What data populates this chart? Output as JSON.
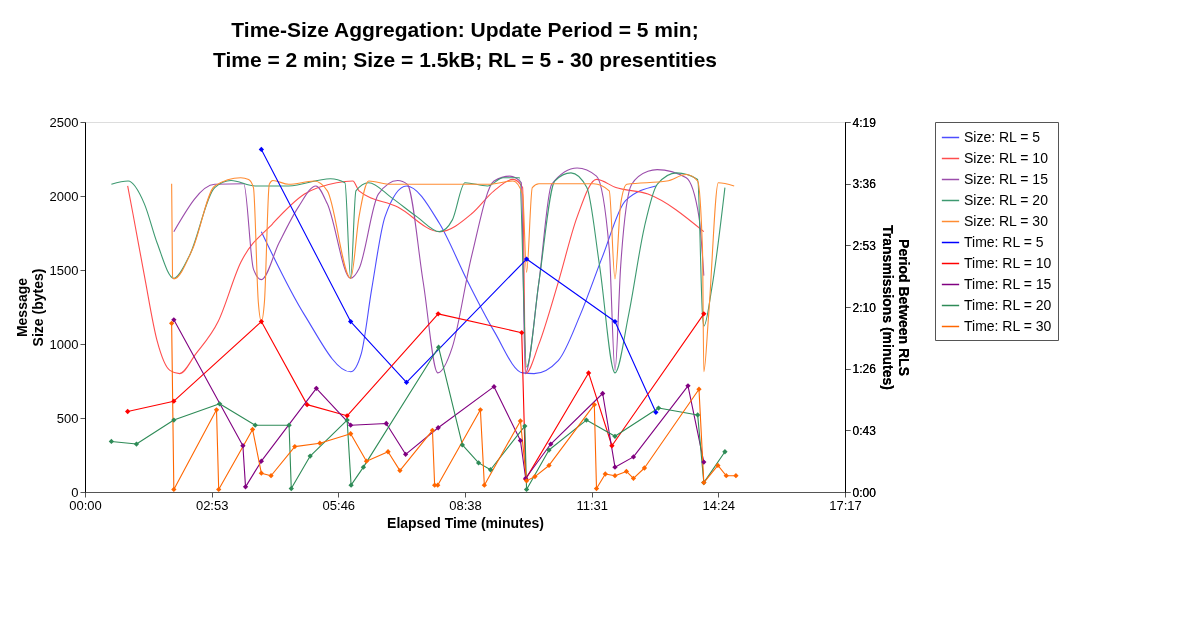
{
  "chart_data": {
    "type": "line",
    "title": [
      "Time-Size Aggregation: Update Period = 5 min;",
      "Time = 2 min; Size = 1.5kB;  RL = 5 - 30 presentities"
    ],
    "xlabel": "Elapsed Time (minutes)",
    "ylabel": "Message Size (bytes)",
    "y2label": "Period Between RLS Transmissions (minutes)",
    "xlim": [
      0,
      17.28
    ],
    "xticks": [
      {
        "value": 0,
        "label": "00:00"
      },
      {
        "value": 2.88,
        "label": "02:53"
      },
      {
        "value": 5.76,
        "label": "05:46"
      },
      {
        "value": 8.64,
        "label": "08:38"
      },
      {
        "value": 11.52,
        "label": "11:31"
      },
      {
        "value": 14.4,
        "label": "14:24"
      },
      {
        "value": 17.28,
        "label": "17:17"
      }
    ],
    "ylim": [
      0,
      2500
    ],
    "yticks": [
      0,
      500,
      1000,
      1500,
      2000,
      2500
    ],
    "y2lim": [
      0,
      4.32
    ],
    "y2ticks": [
      {
        "value": 0,
        "label": "0:00"
      },
      {
        "value": 0.72,
        "label": "0:43"
      },
      {
        "value": 1.44,
        "label": "1:26"
      },
      {
        "value": 2.16,
        "label": "2:10"
      },
      {
        "value": 2.88,
        "label": "2:53"
      },
      {
        "value": 3.6,
        "label": "3:36"
      },
      {
        "value": 4.32,
        "label": "4:19"
      }
    ],
    "grid": false,
    "legend": "right",
    "series": [
      {
        "name": "Size: RL = 5",
        "color": "#4d4dff",
        "marker": "none",
        "x": [
          4.01,
          4.99,
          6.04,
          6.28,
          6.52,
          6.82,
          7.31,
          8.06,
          8.71,
          9.3,
          9.95,
          10.21,
          10.76,
          11.26,
          11.77,
          12.29,
          12.98
        ],
        "values": [
          1759,
          1197,
          812,
          933,
          1374,
          1859,
          2068,
          1814,
          1417,
          1087,
          805,
          800,
          888,
          1197,
          1594,
          1969,
          2068
        ]
      },
      {
        "name": "Size: RL = 10",
        "color": "#ff4d4d",
        "marker": "none",
        "x": [
          0.97,
          1.09,
          1.35,
          1.64,
          1.93,
          2.15,
          2.52,
          3.03,
          3.54,
          4.27,
          4.99,
          5.72,
          6.09,
          6.23,
          7.11,
          8.06,
          8.79,
          9.3,
          9.73,
          9.95,
          10.02,
          10.32,
          10.76,
          11.19,
          11.63,
          12.07,
          12.8,
          14.07
        ],
        "values": [
          2068,
          1880,
          1462,
          1021,
          822,
          800,
          933,
          1153,
          1550,
          1814,
          2013,
          2090,
          2101,
          2035,
          1925,
          1759,
          1880,
          2035,
          2112,
          2057,
          800,
          999,
          1417,
          1859,
          2112,
          2057,
          2013,
          1759
        ]
      },
      {
        "name": "Size: RL = 15",
        "color": "#9b4dab",
        "marker": "none",
        "x": [
          2.02,
          2.95,
          3.61,
          3.83,
          4.01,
          4.41,
          4.85,
          5.25,
          5.51,
          6.04,
          6.23,
          6.67,
          7.11,
          7.33,
          7.69,
          8.02,
          8.35,
          8.79,
          9.3,
          9.66,
          9.92,
          10.01,
          10.32,
          10.61,
          11.19,
          11.63,
          11.92,
          12.05,
          12.18,
          12.43,
          12.8,
          13.01,
          13.67,
          13.96,
          14.07
        ],
        "values": [
          1759,
          2079,
          2083,
          1506,
          1435,
          1682,
          1925,
          2068,
          1947,
          1444,
          1508,
          2013,
          2105,
          2079,
          1417,
          805,
          977,
          1594,
          2101,
          2134,
          2090,
          800,
          1417,
          2079,
          2189,
          2134,
          1638,
          822,
          1528,
          2079,
          2167,
          2178,
          2123,
          1859,
          1462
        ]
      },
      {
        "name": "Size: RL = 20",
        "color": "#3d9970",
        "marker": "none",
        "x": [
          0.6,
          0.98,
          1.35,
          1.64,
          2.02,
          2.37,
          2.95,
          3.32,
          3.87,
          4.63,
          5.58,
          5.91,
          6.04,
          6.16,
          6.45,
          6.96,
          7.55,
          8.06,
          8.35,
          8.64,
          9.15,
          9.51,
          9.88,
          10.04,
          10.32,
          10.68,
          11.05,
          11.41,
          11.7,
          12.05,
          12.36,
          12.72,
          13.01,
          13.45,
          13.93,
          14.04,
          14.07,
          14.25,
          14.55
        ],
        "values": [
          2079,
          2101,
          1947,
          1682,
          1444,
          1594,
          2057,
          2105,
          2068,
          2068,
          2117,
          2090,
          1444,
          2035,
          2090,
          1991,
          1859,
          1759,
          1837,
          2090,
          2068,
          2123,
          2123,
          845,
          1417,
          2101,
          2156,
          2057,
          1528,
          805,
          1197,
          1792,
          2079,
          2156,
          2112,
          1197,
          1120,
          1374,
          2057
        ]
      },
      {
        "name": "Size: RL = 30",
        "color": "#ff8c33",
        "marker": "none",
        "x": [
          1.97,
          1.99,
          2.02,
          2.44,
          2.95,
          3.54,
          3.72,
          3.83,
          3.94,
          4.01,
          4.08,
          4.19,
          4.27,
          4.63,
          5.21,
          5.51,
          6.04,
          6.23,
          6.45,
          6.96,
          9.15,
          9.73,
          9.95,
          10.04,
          10.17,
          10.32,
          11.56,
          11.92,
          12.05,
          12.18,
          12.32,
          13.23,
          13.67,
          13.93,
          14.04,
          14.07,
          14.18,
          14.4,
          14.76
        ],
        "values": [
          2083,
          1450,
          1440,
          1638,
          2068,
          2123,
          2112,
          2057,
          1285,
          1153,
          1285,
          2079,
          2105,
          2079,
          2101,
          2035,
          1444,
          1859,
          2101,
          2079,
          2079,
          2101,
          2013,
          1484,
          2057,
          2083,
          2083,
          2035,
          1440,
          1947,
          2079,
          2101,
          2145,
          2101,
          1638,
          812,
          1197,
          2090,
          2068
        ]
      },
      {
        "name": "Time: RL = 5",
        "color": "#0000ff",
        "marker": "diamond",
        "axis": "y2",
        "x": [
          4.01,
          6.04,
          7.31,
          10.04,
          12.05,
          12.98
        ],
        "values": [
          4.0,
          1.99,
          1.28,
          2.72,
          1.99,
          0.93
        ]
      },
      {
        "name": "Time: RL = 10",
        "color": "#ff0000",
        "marker": "diamond",
        "axis": "y2",
        "x": [
          0.97,
          2.02,
          4.01,
          5.05,
          5.96,
          8.03,
          9.93,
          10.02,
          11.45,
          11.98,
          14.07
        ],
        "values": [
          0.94,
          1.06,
          1.99,
          1.02,
          0.89,
          2.08,
          1.86,
          0.15,
          1.39,
          0.54,
          2.08
        ]
      },
      {
        "name": "Time: RL = 15",
        "color": "#800080",
        "marker": "diamond",
        "axis": "y2",
        "x": [
          2.02,
          3.59,
          3.65,
          4.01,
          5.26,
          6.04,
          6.85,
          7.29,
          8.03,
          9.3,
          9.9,
          10.02,
          10.59,
          11.77,
          12.05,
          12.47,
          13.71,
          14.07
        ],
        "values": [
          2.01,
          0.54,
          0.06,
          0.36,
          1.21,
          0.78,
          0.8,
          0.44,
          0.75,
          1.23,
          0.6,
          0.16,
          0.56,
          1.15,
          0.29,
          0.41,
          1.24,
          0.35
        ]
      },
      {
        "name": "Time: RL = 20",
        "color": "#2e8b57",
        "marker": "diamond",
        "axis": "y2",
        "x": [
          0.6,
          1.17,
          2.02,
          3.06,
          3.87,
          4.64,
          4.69,
          5.12,
          5.96,
          6.05,
          6.33,
          8.04,
          8.58,
          8.95,
          9.22,
          10.0,
          10.04,
          10.55,
          11.4,
          12.05,
          13.04,
          13.93,
          14.07,
          14.55
        ],
        "values": [
          0.59,
          0.56,
          0.84,
          1.03,
          0.78,
          0.78,
          0.04,
          0.42,
          0.84,
          0.08,
          0.29,
          1.69,
          0.55,
          0.34,
          0.26,
          0.77,
          0.03,
          0.49,
          0.84,
          0.65,
          0.98,
          0.9,
          0.11,
          0.47
        ]
      },
      {
        "name": "Time: RL = 30",
        "color": "#ff6600",
        "marker": "diamond",
        "axis": "y2",
        "x": [
          1.97,
          2.02,
          2.99,
          3.04,
          3.81,
          4.01,
          4.23,
          4.77,
          5.34,
          6.04,
          6.4,
          6.89,
          7.16,
          7.9,
          7.95,
          8.02,
          8.99,
          9.08,
          9.9,
          10.04,
          10.23,
          10.55,
          11.58,
          11.63,
          11.83,
          12.05,
          12.31,
          12.47,
          12.72,
          13.96,
          14.07,
          14.39,
          14.58,
          14.8
        ],
        "values": [
          1.97,
          0.03,
          0.96,
          0.03,
          0.73,
          0.22,
          0.19,
          0.53,
          0.57,
          0.68,
          0.36,
          0.47,
          0.25,
          0.72,
          0.08,
          0.08,
          0.96,
          0.08,
          0.83,
          0.13,
          0.18,
          0.31,
          1.02,
          0.04,
          0.21,
          0.19,
          0.24,
          0.16,
          0.28,
          1.2,
          0.11,
          0.31,
          0.19,
          0.19
        ]
      }
    ]
  }
}
